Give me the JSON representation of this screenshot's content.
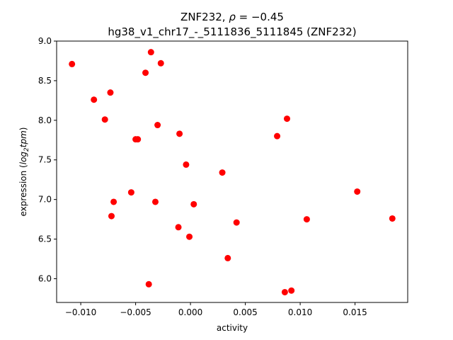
{
  "chart_data": {
    "type": "scatter",
    "title_line1_prefix": "ZNF232, ",
    "title_rho_symbol": "ρ",
    "title_rho_eq": " = −0.45",
    "title_line2": "hg38_v1_chr17_-_5111836_5111845 (ZNF232)",
    "xlabel": "activity",
    "ylabel_prefix": "expression (",
    "ylabel_log": "log",
    "ylabel_sub": "2",
    "ylabel_tpm": "tpm",
    "ylabel_suffix": ")",
    "xlim": [
      -0.0122,
      0.0198
    ],
    "ylim": [
      5.7,
      9.0
    ],
    "xticks": [
      -0.01,
      -0.005,
      0.0,
      0.005,
      0.01,
      0.015
    ],
    "xtick_labels": [
      "−0.010",
      "−0.005",
      "0.000",
      "0.005",
      "0.010",
      "0.015"
    ],
    "yticks": [
      6.0,
      6.5,
      7.0,
      7.5,
      8.0,
      8.5,
      9.0
    ],
    "ytick_labels": [
      "6.0",
      "6.5",
      "7.0",
      "7.5",
      "8.0",
      "8.5",
      "9.0"
    ],
    "marker_color": "#ff0000",
    "grid": false,
    "points": [
      {
        "x": -0.0108,
        "y": 8.71
      },
      {
        "x": -0.0088,
        "y": 8.26
      },
      {
        "x": -0.0078,
        "y": 8.01
      },
      {
        "x": -0.0073,
        "y": 8.35
      },
      {
        "x": -0.0072,
        "y": 6.79
      },
      {
        "x": -0.007,
        "y": 6.97
      },
      {
        "x": -0.0054,
        "y": 7.09
      },
      {
        "x": -0.005,
        "y": 7.76
      },
      {
        "x": -0.0048,
        "y": 7.76
      },
      {
        "x": -0.0041,
        "y": 8.6
      },
      {
        "x": -0.0038,
        "y": 5.93
      },
      {
        "x": -0.0036,
        "y": 8.86
      },
      {
        "x": -0.0032,
        "y": 6.97
      },
      {
        "x": -0.003,
        "y": 7.94
      },
      {
        "x": -0.0027,
        "y": 8.72
      },
      {
        "x": -0.0011,
        "y": 6.65
      },
      {
        "x": -0.001,
        "y": 7.83
      },
      {
        "x": -0.0004,
        "y": 7.44
      },
      {
        "x": -0.0001,
        "y": 6.53
      },
      {
        "x": 0.0003,
        "y": 6.94
      },
      {
        "x": 0.0029,
        "y": 7.34
      },
      {
        "x": 0.0034,
        "y": 6.26
      },
      {
        "x": 0.0042,
        "y": 6.71
      },
      {
        "x": 0.0079,
        "y": 7.8
      },
      {
        "x": 0.0086,
        "y": 5.83
      },
      {
        "x": 0.0088,
        "y": 8.02
      },
      {
        "x": 0.0092,
        "y": 5.85
      },
      {
        "x": 0.0106,
        "y": 6.75
      },
      {
        "x": 0.0152,
        "y": 7.1
      },
      {
        "x": 0.0184,
        "y": 6.76
      }
    ]
  }
}
